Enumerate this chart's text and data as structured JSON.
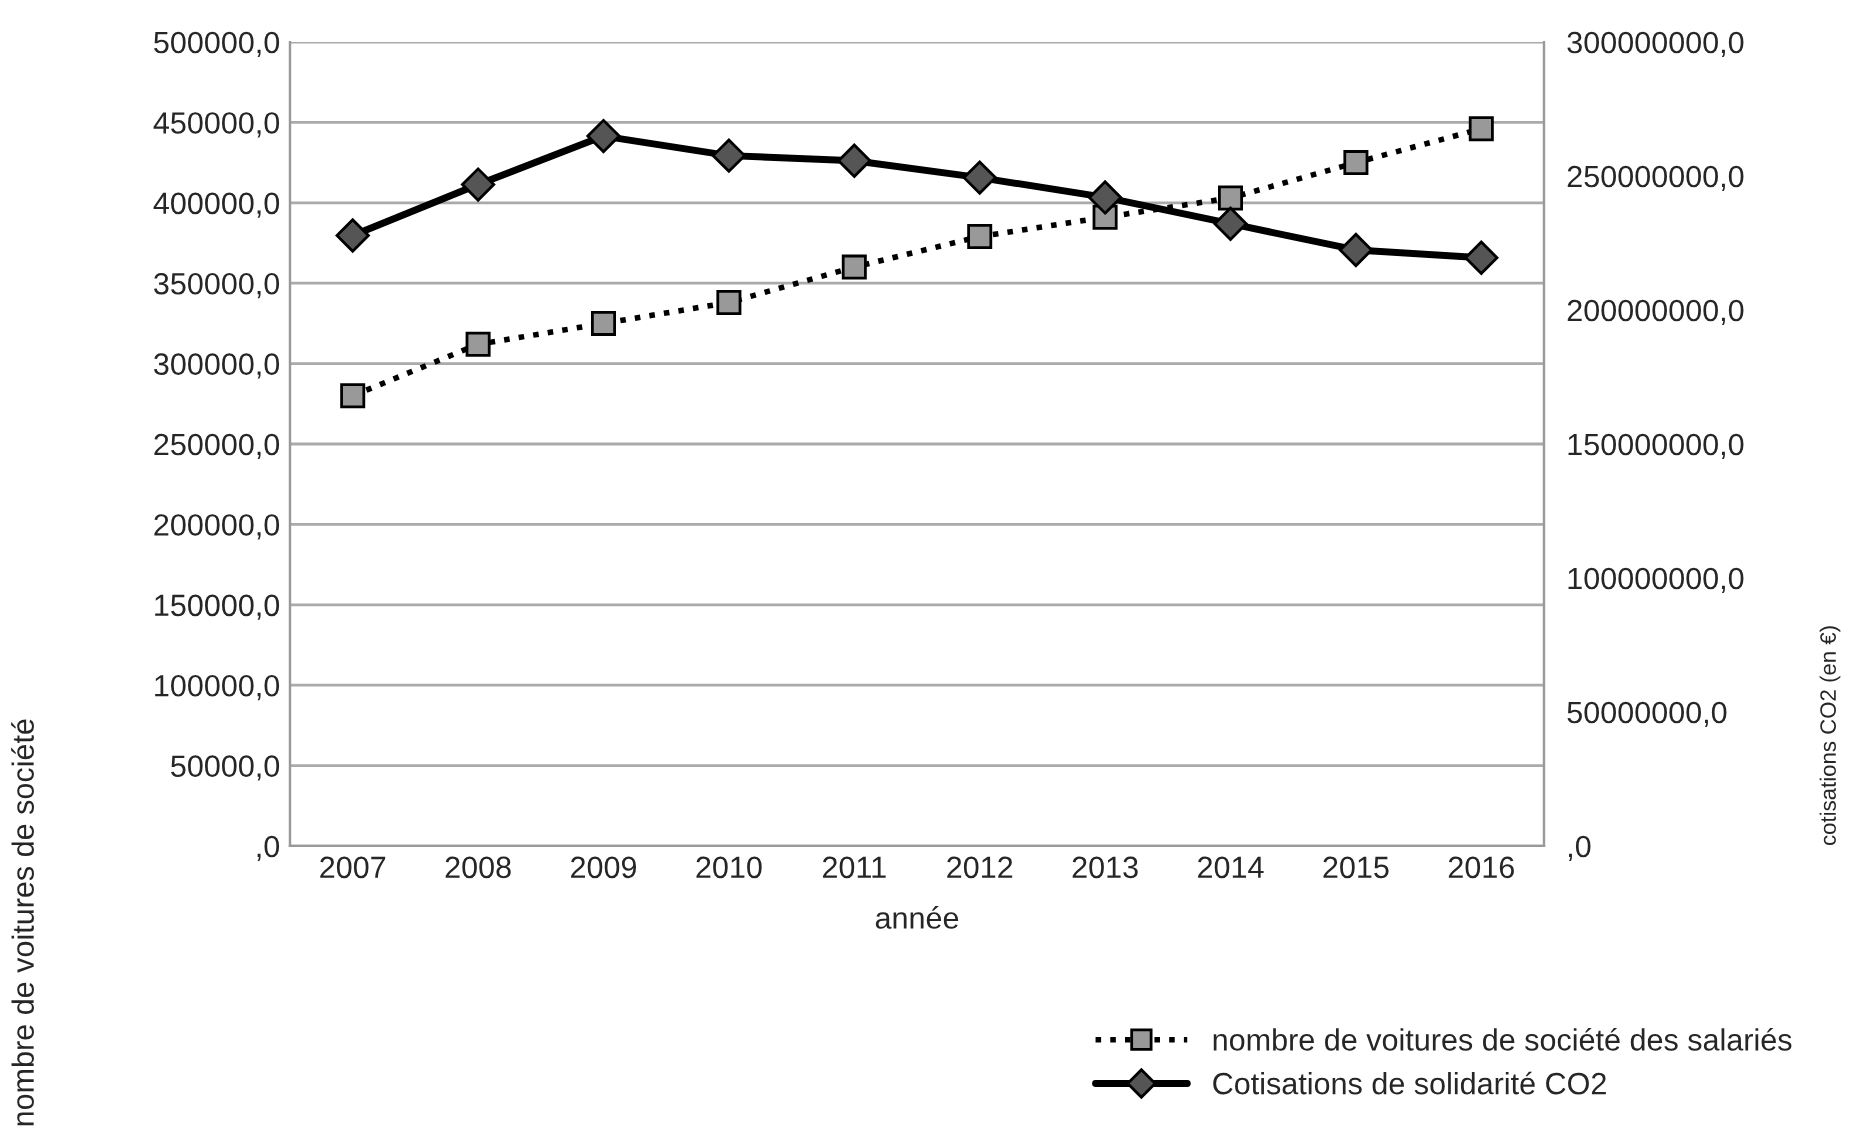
{
  "chart_data": {
    "type": "line",
    "xlabel": "année",
    "ylabel": "nombre de voitures de société",
    "y2label": "cotisations CO2 (en €)",
    "categories": [
      "2007",
      "2008",
      "2009",
      "2010",
      "2011",
      "2012",
      "2013",
      "2014",
      "2015",
      "2016"
    ],
    "series": [
      {
        "name": "nombre de voitures de société des salariés",
        "color": "#000000",
        "marker": "square",
        "line_style": "dotted",
        "values": [
          280000,
          312000,
          325000,
          338000,
          360000,
          379000,
          391000,
          403000,
          425000,
          446000
        ]
      },
      {
        "name": "Cotisations de solidarité CO2",
        "color": "#000000",
        "marker": "diamond",
        "line_style": "solid",
        "axis": "y2",
        "values": [
          227800000,
          246800000,
          264900000,
          257600000,
          255700000,
          249400000,
          242000000,
          232200000,
          222400000,
          219500000
        ]
      }
    ],
    "ylim": [
      0,
      500000
    ],
    "yticks": [
      {
        "value": 0,
        "label": ",0"
      },
      {
        "value": 50000,
        "label": "50000,0"
      },
      {
        "value": 100000,
        "label": "100000,0"
      },
      {
        "value": 150000,
        "label": "150000,0"
      },
      {
        "value": 200000,
        "label": "200000,0"
      },
      {
        "value": 250000,
        "label": "250000,0"
      },
      {
        "value": 300000,
        "label": "300000,0"
      },
      {
        "value": 350000,
        "label": "350000,0"
      },
      {
        "value": 400000,
        "label": "400000,0"
      },
      {
        "value": 450000,
        "label": "450000,0"
      },
      {
        "value": 500000,
        "label": "500000,0"
      }
    ],
    "y2lim": [
      0,
      300000000
    ],
    "y2ticks": [
      {
        "value": 0,
        "label": ",0"
      },
      {
        "value": 50000000,
        "label": "50000000,0"
      },
      {
        "value": 100000000,
        "label": "100000000,0"
      },
      {
        "value": 150000000,
        "label": "150000000,0"
      },
      {
        "value": 200000000,
        "label": "200000000,0"
      },
      {
        "value": 250000000,
        "label": "250000000,0"
      },
      {
        "value": 300000000,
        "label": "300000000,0"
      }
    ],
    "grid": "y",
    "legend": "bottom right"
  }
}
